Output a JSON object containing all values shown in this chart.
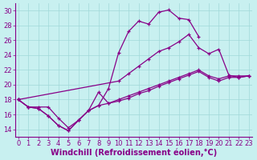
{
  "background_color": "#c8f0f0",
  "grid_color": "#a0d8d8",
  "line_color": "#880088",
  "xlabel": "Windchill (Refroidissement éolien,°C)",
  "xlabel_fontsize": 7,
  "tick_fontsize": 6,
  "ylim": [
    13,
    31
  ],
  "xlim": [
    -0.3,
    23.3
  ],
  "yticks": [
    14,
    16,
    18,
    20,
    22,
    24,
    26,
    28,
    30
  ],
  "xticks": [
    0,
    1,
    2,
    3,
    4,
    5,
    6,
    7,
    8,
    9,
    10,
    11,
    12,
    13,
    14,
    15,
    16,
    17,
    18,
    19,
    20,
    21,
    22,
    23
  ],
  "curves": [
    {
      "x": [
        0,
        1,
        2,
        3,
        4,
        5,
        6,
        7,
        8,
        9,
        10,
        11,
        12,
        13,
        14,
        15,
        16,
        17,
        18
      ],
      "y": [
        18.0,
        17.0,
        16.8,
        15.8,
        14.5,
        13.8,
        15.2,
        16.5,
        17.2,
        19.5,
        24.3,
        27.2,
        28.6,
        28.2,
        29.8,
        30.1,
        29.0,
        28.8,
        26.5
      ]
    },
    {
      "x": [
        0,
        10,
        11,
        12,
        13,
        14,
        15,
        16,
        17,
        18,
        19,
        20,
        21,
        22,
        23
      ],
      "y": [
        18.0,
        20.5,
        21.5,
        22.5,
        23.5,
        24.5,
        25.0,
        25.8,
        26.8,
        25.0,
        24.2,
        24.8,
        21.3,
        21.0,
        21.2
      ]
    },
    {
      "x": [
        0,
        1,
        2,
        3,
        4,
        5,
        6,
        7,
        8,
        9,
        10,
        11,
        12,
        13,
        14,
        15,
        16,
        17,
        18,
        19,
        20,
        21,
        22,
        23
      ],
      "y": [
        18.0,
        17.0,
        17.0,
        17.0,
        15.5,
        14.2,
        15.2,
        16.5,
        17.2,
        17.5,
        18.0,
        18.5,
        19.0,
        19.5,
        20.0,
        20.5,
        21.0,
        21.5,
        22.0,
        21.2,
        20.8,
        21.2,
        21.2,
        21.2
      ]
    },
    {
      "x": [
        0,
        1,
        2,
        3,
        4,
        5,
        6,
        7,
        8,
        9,
        10,
        11,
        12,
        13,
        14,
        15,
        16,
        17,
        18,
        19,
        20,
        21,
        22,
        23
      ],
      "y": [
        18.0,
        17.0,
        16.8,
        15.8,
        14.5,
        13.8,
        15.2,
        16.5,
        19.0,
        17.5,
        17.8,
        18.2,
        18.8,
        19.2,
        19.8,
        20.3,
        20.8,
        21.3,
        21.8,
        21.0,
        20.5,
        21.0,
        21.0,
        21.2
      ]
    }
  ]
}
